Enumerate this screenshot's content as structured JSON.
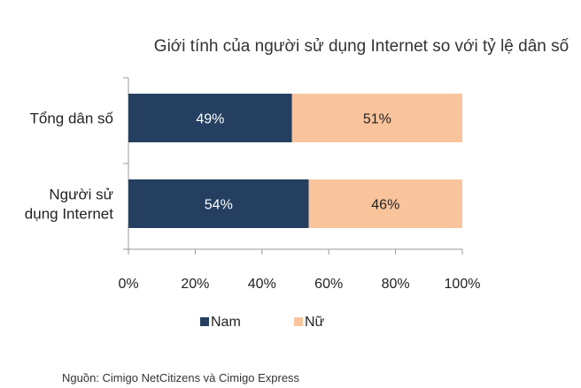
{
  "source_note": "Nguồn: Cimigo NetCitizens và Cimigo Express",
  "chart_data": {
    "type": "bar",
    "orientation": "horizontal",
    "stacked": "percent",
    "title": "Giới tính của người sử dụng Internet so với tỷ lệ dân số",
    "categories": [
      [
        "Tổng dân số"
      ],
      [
        "Người sử",
        "dụng Internet"
      ]
    ],
    "series": [
      {
        "name": "Nam",
        "values": [
          49,
          54
        ],
        "labels": [
          "49%",
          "54%"
        ],
        "color": "#243f60",
        "label_color": "#ffffff"
      },
      {
        "name": "Nữ",
        "values": [
          51,
          46
        ],
        "labels": [
          "51%",
          "46%"
        ],
        "color": "#f9c49b",
        "label_color": "#222222"
      }
    ],
    "xlim": [
      0,
      100
    ],
    "x_ticks": [
      "0%",
      "20%",
      "40%",
      "60%",
      "80%",
      "100%"
    ],
    "grid": false,
    "legend_position": "bottom"
  }
}
